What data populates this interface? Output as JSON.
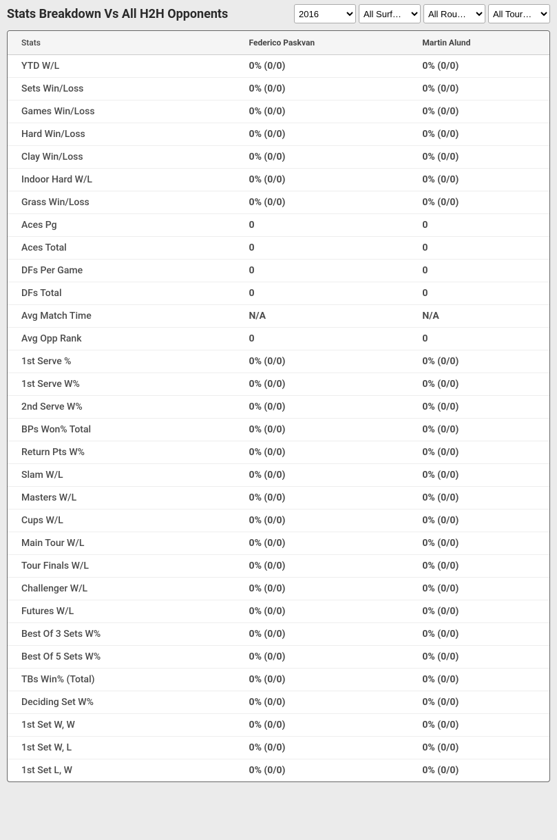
{
  "header": {
    "title": "Stats Breakdown Vs All H2H Opponents"
  },
  "filters": {
    "year": {
      "selected": "2016",
      "options": [
        "2016"
      ]
    },
    "surface": {
      "selected": "All Surf…",
      "options": [
        "All Surf…"
      ]
    },
    "round": {
      "selected": "All Rou…",
      "options": [
        "All Rou…"
      ]
    },
    "tour": {
      "selected": "All Tour…",
      "options": [
        "All Tour…"
      ]
    }
  },
  "table": {
    "columns": [
      "Stats",
      "Federico Paskvan",
      "Martin Alund"
    ],
    "rows": [
      [
        "YTD W/L",
        "0% (0/0)",
        "0% (0/0)"
      ],
      [
        "Sets Win/Loss",
        "0% (0/0)",
        "0% (0/0)"
      ],
      [
        "Games Win/Loss",
        "0% (0/0)",
        "0% (0/0)"
      ],
      [
        "Hard Win/Loss",
        "0% (0/0)",
        "0% (0/0)"
      ],
      [
        "Clay Win/Loss",
        "0% (0/0)",
        "0% (0/0)"
      ],
      [
        "Indoor Hard W/L",
        "0% (0/0)",
        "0% (0/0)"
      ],
      [
        "Grass Win/Loss",
        "0% (0/0)",
        "0% (0/0)"
      ],
      [
        "Aces Pg",
        "0",
        "0"
      ],
      [
        "Aces Total",
        "0",
        "0"
      ],
      [
        "DFs Per Game",
        "0",
        "0"
      ],
      [
        "DFs Total",
        "0",
        "0"
      ],
      [
        "Avg Match Time",
        "N/A",
        "N/A"
      ],
      [
        "Avg Opp Rank",
        "0",
        "0"
      ],
      [
        "1st Serve %",
        "0% (0/0)",
        "0% (0/0)"
      ],
      [
        "1st Serve W%",
        "0% (0/0)",
        "0% (0/0)"
      ],
      [
        "2nd Serve W%",
        "0% (0/0)",
        "0% (0/0)"
      ],
      [
        "BPs Won% Total",
        "0% (0/0)",
        "0% (0/0)"
      ],
      [
        "Return Pts W%",
        "0% (0/0)",
        "0% (0/0)"
      ],
      [
        "Slam W/L",
        "0% (0/0)",
        "0% (0/0)"
      ],
      [
        "Masters W/L",
        "0% (0/0)",
        "0% (0/0)"
      ],
      [
        "Cups W/L",
        "0% (0/0)",
        "0% (0/0)"
      ],
      [
        "Main Tour W/L",
        "0% (0/0)",
        "0% (0/0)"
      ],
      [
        "Tour Finals W/L",
        "0% (0/0)",
        "0% (0/0)"
      ],
      [
        "Challenger W/L",
        "0% (0/0)",
        "0% (0/0)"
      ],
      [
        "Futures W/L",
        "0% (0/0)",
        "0% (0/0)"
      ],
      [
        "Best Of 3 Sets W%",
        "0% (0/0)",
        "0% (0/0)"
      ],
      [
        "Best Of 5 Sets W%",
        "0% (0/0)",
        "0% (0/0)"
      ],
      [
        "TBs Win% (Total)",
        "0% (0/0)",
        "0% (0/0)"
      ],
      [
        "Deciding Set W%",
        "0% (0/0)",
        "0% (0/0)"
      ],
      [
        "1st Set W, W",
        "0% (0/0)",
        "0% (0/0)"
      ],
      [
        "1st Set W, L",
        "0% (0/0)",
        "0% (0/0)"
      ],
      [
        "1st Set L, W",
        "0% (0/0)",
        "0% (0/0)"
      ]
    ]
  },
  "colors": {
    "page_bg": "#ebebeb",
    "table_bg": "#ffffff",
    "header_bg": "#f5f5f5",
    "border": "#666666",
    "row_border": "#eeeeee",
    "text": "#4a4a4a"
  }
}
